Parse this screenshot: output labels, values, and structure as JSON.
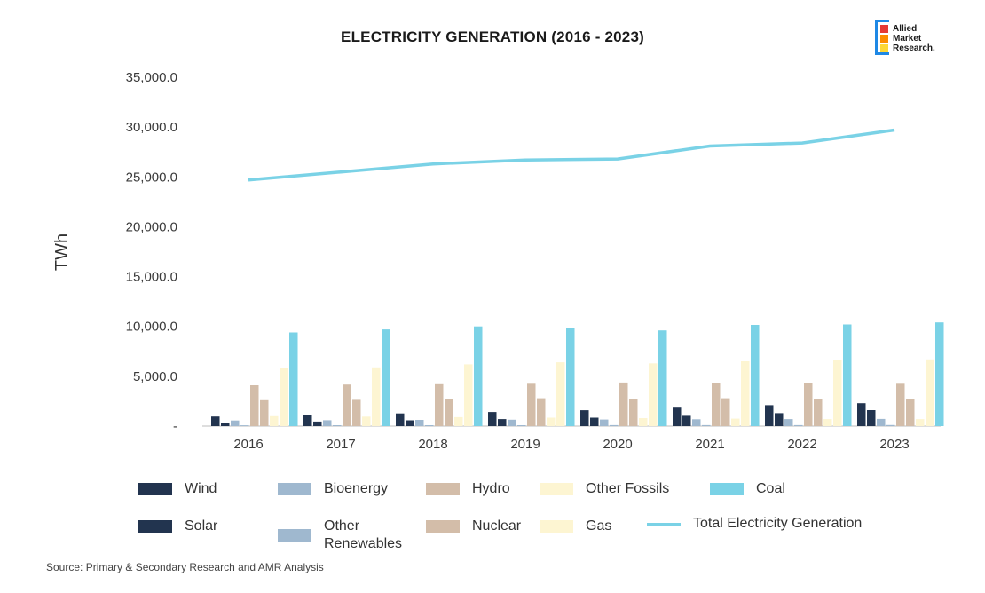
{
  "logo": {
    "text_lines": [
      "Allied",
      "Market",
      "Research."
    ]
  },
  "source": "Source: Primary & Secondary Research and AMR Analysis",
  "colors": {
    "Wind": "#22344f",
    "Solar": "#22344f",
    "Bioenergy": "#9fb8cf",
    "Other Renewables": "#9fb8cf",
    "Hydro": "#d3bda9",
    "Nuclear": "#d3bda9",
    "Other Fossils": "#fdf5d2",
    "Gas": "#fdf5d2",
    "Coal": "#7ad2e6",
    "Total Electricity Generation": "#7ad2e6"
  },
  "chart_data": {
    "type": "bar",
    "title": "ELECTRICITY GENERATION (2016 - 2023)",
    "ylabel": "TWh",
    "xlabel": "",
    "ylim": [
      0,
      35000
    ],
    "yticks": [
      "-",
      "5,000.0",
      "10,000.0",
      "15,000.0",
      "20,000.0",
      "25,000.0",
      "30,000.0",
      "35,000.0"
    ],
    "categories": [
      "2016",
      "2017",
      "2018",
      "2019",
      "2020",
      "2021",
      "2022",
      "2023"
    ],
    "legend_position": "bottom",
    "series": [
      {
        "name": "Wind",
        "type": "bar",
        "values": [
          960,
          1130,
          1270,
          1420,
          1590,
          1850,
          2100,
          2300
        ]
      },
      {
        "name": "Solar",
        "type": "bar",
        "values": [
          330,
          450,
          580,
          700,
          850,
          1030,
          1300,
          1600
        ]
      },
      {
        "name": "Bioenergy",
        "type": "bar",
        "values": [
          560,
          590,
          620,
          640,
          660,
          690,
          700,
          720
        ]
      },
      {
        "name": "Other Renewables",
        "type": "bar",
        "values": [
          80,
          85,
          90,
          92,
          95,
          97,
          100,
          105
        ]
      },
      {
        "name": "Hydro",
        "type": "bar",
        "values": [
          4100,
          4170,
          4200,
          4250,
          4370,
          4330,
          4330,
          4250
        ]
      },
      {
        "name": "Nuclear",
        "type": "bar",
        "values": [
          2600,
          2640,
          2700,
          2800,
          2700,
          2800,
          2700,
          2750
        ]
      },
      {
        "name": "Other Fossils",
        "type": "bar",
        "values": [
          1000,
          950,
          900,
          850,
          800,
          750,
          700,
          700
        ]
      },
      {
        "name": "Gas",
        "type": "bar",
        "values": [
          5800,
          5900,
          6200,
          6400,
          6300,
          6500,
          6600,
          6700
        ]
      },
      {
        "name": "Coal",
        "type": "bar",
        "values": [
          9400,
          9700,
          10000,
          9800,
          9600,
          10150,
          10200,
          10400
        ]
      },
      {
        "name": "Total Electricity Generation",
        "type": "line",
        "values": [
          24700,
          25500,
          26300,
          26700,
          26800,
          28100,
          28400,
          29700
        ]
      }
    ]
  }
}
